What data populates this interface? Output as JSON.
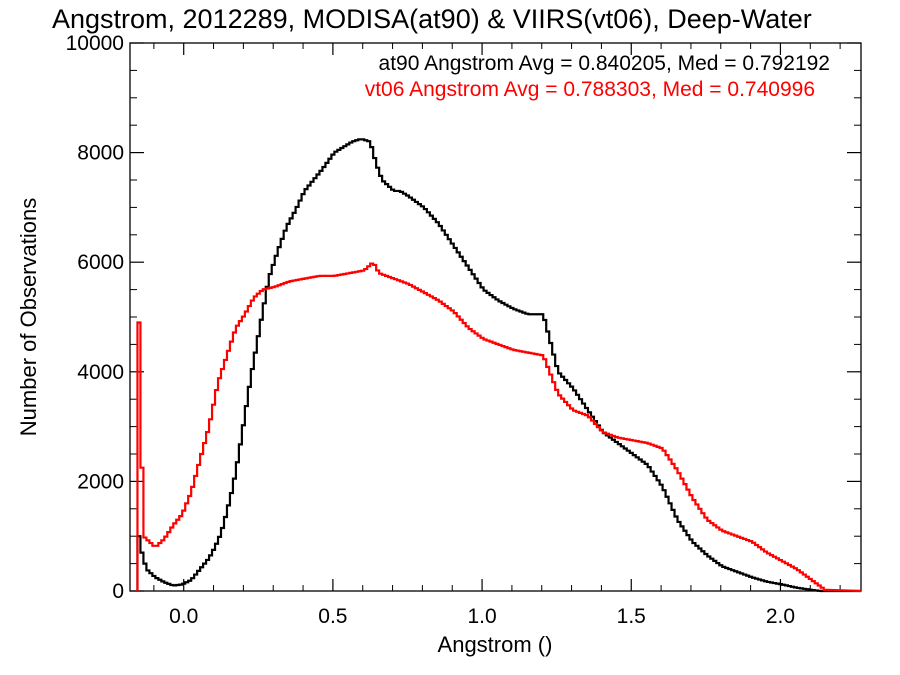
{
  "chart_data": {
    "type": "line",
    "title": "Angstrom, 2012289, MODISA(at90) & VIIRS(vt06), Deep-Water",
    "xlabel": "Angstrom ()",
    "ylabel": "Number of Observations",
    "xlim": [
      -0.18,
      2.27
    ],
    "ylim": [
      0,
      10000
    ],
    "xticks": [
      0.0,
      0.5,
      1.0,
      1.5,
      2.0
    ],
    "xtick_labels": [
      "0.0",
      "0.5",
      "1.0",
      "1.5",
      "2.0"
    ],
    "yticks": [
      0,
      2000,
      4000,
      6000,
      8000,
      10000
    ],
    "ytick_labels": [
      "0",
      "2000",
      "4000",
      "6000",
      "8000",
      "10000"
    ],
    "grid": false,
    "annotations": [
      {
        "text": "at90 Angstrom Avg = 0.840205, Med = 0.792192",
        "color": "#000000"
      },
      {
        "text": "vt06 Angstrom Avg = 0.788303, Med = 0.740996",
        "color": "#ff0000"
      }
    ],
    "series": [
      {
        "color": "#000000",
        "x": [
          -0.155,
          -0.15,
          -0.13,
          -0.1,
          -0.07,
          -0.04,
          -0.01,
          0.02,
          0.05,
          0.08,
          0.1,
          0.12,
          0.14,
          0.16,
          0.18,
          0.2,
          0.22,
          0.25,
          0.28,
          0.31,
          0.34,
          0.37,
          0.4,
          0.43,
          0.46,
          0.5,
          0.53,
          0.56,
          0.59,
          0.62,
          0.64,
          0.66,
          0.68,
          0.7,
          0.72,
          0.75,
          0.8,
          0.85,
          0.9,
          0.95,
          1.0,
          1.05,
          1.1,
          1.15,
          1.2,
          1.25,
          1.3,
          1.35,
          1.4,
          1.45,
          1.5,
          1.55,
          1.6,
          1.65,
          1.7,
          1.75,
          1.8,
          1.85,
          1.9,
          1.95,
          2.0,
          2.05,
          2.1,
          2.13,
          2.15
        ],
        "values": [
          1000,
          800,
          400,
          250,
          160,
          100,
          120,
          200,
          400,
          600,
          800,
          1050,
          1450,
          1900,
          2500,
          3200,
          3900,
          4800,
          5700,
          6200,
          6650,
          6950,
          7300,
          7500,
          7700,
          8000,
          8100,
          8200,
          8250,
          8200,
          7800,
          7500,
          7400,
          7300,
          7300,
          7200,
          7000,
          6700,
          6300,
          5900,
          5500,
          5300,
          5150,
          5050,
          5050,
          4000,
          3700,
          3300,
          2900,
          2700,
          2500,
          2300,
          1900,
          1300,
          900,
          650,
          450,
          350,
          250,
          170,
          120,
          60,
          20,
          0,
          0
        ]
      },
      {
        "color": "#ff0000",
        "x": [
          -0.155,
          -0.148,
          -0.14,
          -0.1,
          -0.07,
          -0.04,
          -0.01,
          0.02,
          0.05,
          0.08,
          0.11,
          0.14,
          0.17,
          0.2,
          0.23,
          0.26,
          0.3,
          0.35,
          0.4,
          0.45,
          0.5,
          0.55,
          0.6,
          0.63,
          0.65,
          0.7,
          0.75,
          0.8,
          0.85,
          0.9,
          0.95,
          1.0,
          1.05,
          1.1,
          1.15,
          1.2,
          1.25,
          1.3,
          1.35,
          1.4,
          1.45,
          1.5,
          1.55,
          1.6,
          1.65,
          1.7,
          1.75,
          1.8,
          1.85,
          1.9,
          1.95,
          2.0,
          2.05,
          2.1,
          2.13,
          2.15
        ],
        "values": [
          4900,
          3000,
          1000,
          800,
          950,
          1200,
          1400,
          1800,
          2400,
          3000,
          3800,
          4300,
          4800,
          5050,
          5350,
          5500,
          5550,
          5650,
          5700,
          5750,
          5750,
          5800,
          5850,
          6000,
          5800,
          5700,
          5600,
          5450,
          5300,
          5100,
          4800,
          4600,
          4500,
          4400,
          4350,
          4300,
          3600,
          3300,
          3200,
          2900,
          2800,
          2750,
          2700,
          2600,
          2200,
          1700,
          1300,
          1100,
          1000,
          900,
          700,
          550,
          400,
          200,
          80,
          0
        ]
      }
    ]
  }
}
